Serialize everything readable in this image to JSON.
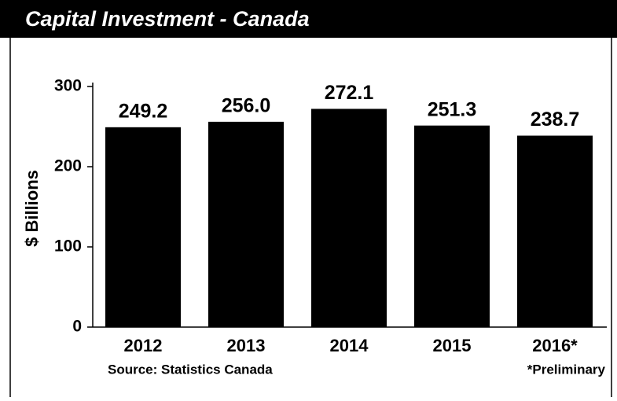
{
  "chart_data": {
    "type": "bar",
    "title": "Capital Investment - Canada",
    "y_label": "$ Billions",
    "categories": [
      "2012",
      "2013",
      "2014",
      "2015",
      "2016*"
    ],
    "values": [
      249.2,
      256.0,
      272.1,
      251.3,
      238.7
    ],
    "value_labels": [
      "249.2",
      "256.0",
      "272.1",
      "251.3",
      "238.7"
    ],
    "color": "#000000",
    "ylim": [
      0,
      300
    ],
    "yticks": [
      0,
      100,
      200,
      300
    ],
    "grid": false,
    "source": "Source:  Statistics Canada",
    "note": "*Preliminary"
  }
}
